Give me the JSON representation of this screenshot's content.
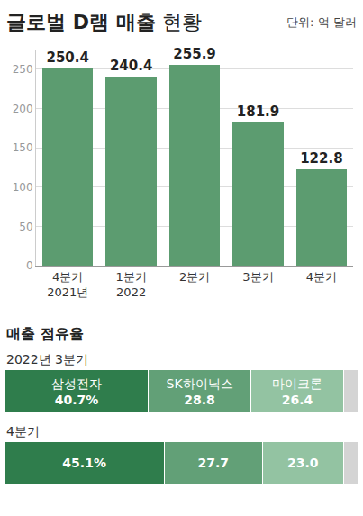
{
  "chart_data": [
    {
      "type": "bar",
      "title": "글로벌 D램 매출 현황",
      "subtitle": "단위: 억 달러",
      "categories": [
        "4분기 2021년",
        "1분기 2022",
        "2분기",
        "3분기",
        "4분기"
      ],
      "values": [
        250.4,
        240.4,
        255.9,
        181.9,
        122.8
      ],
      "color": "#5c9c70",
      "ylim": [
        0,
        275
      ],
      "yticks": [
        0,
        50,
        100,
        150,
        200,
        250
      ],
      "grid": true,
      "data_labels": true
    },
    {
      "type": "bar",
      "title": "매출 점유율",
      "categories": [
        "2022년 3분기",
        "4분기"
      ],
      "orientation": "horizontal",
      "stacked": true,
      "data_labels": true,
      "tick_labels": false,
      "xlim": [
        0,
        100
      ],
      "series": [
        {
          "name": "삼성전자",
          "color": "#2f7d4c",
          "values": [
            40.7,
            45.1
          ],
          "value_labels": [
            "40.7%",
            "45.1%"
          ]
        },
        {
          "name": "SK하이닉스",
          "color": "#62a077",
          "values": [
            28.8,
            27.7
          ],
          "value_labels": [
            "28.8",
            "27.7"
          ]
        },
        {
          "name": "마이크론",
          "color": "#93c3a2",
          "values": [
            26.4,
            23.0
          ],
          "value_labels": [
            "26.4",
            "23.0"
          ]
        },
        {
          "name": null,
          "color": "#d4d4d4",
          "values": [
            4.1,
            4.2
          ]
        }
      ]
    }
  ]
}
